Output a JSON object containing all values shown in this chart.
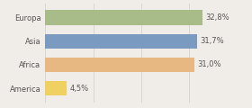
{
  "categories": [
    "Europa",
    "Asia",
    "Africa",
    "America"
  ],
  "values": [
    32.8,
    31.7,
    31.0,
    4.5
  ],
  "labels": [
    "32,8%",
    "31,7%",
    "31,0%",
    "4,5%"
  ],
  "bar_colors": [
    "#a8bc8a",
    "#7b9abf",
    "#e8b882",
    "#f0d060"
  ],
  "background_color": "#f0ede8",
  "xlim": [
    0,
    42
  ],
  "bar_height": 0.62,
  "label_fontsize": 6.0,
  "category_fontsize": 6.0,
  "grid_ticks": [
    0,
    10,
    20,
    30
  ],
  "grid_color": "#d0ccc8"
}
